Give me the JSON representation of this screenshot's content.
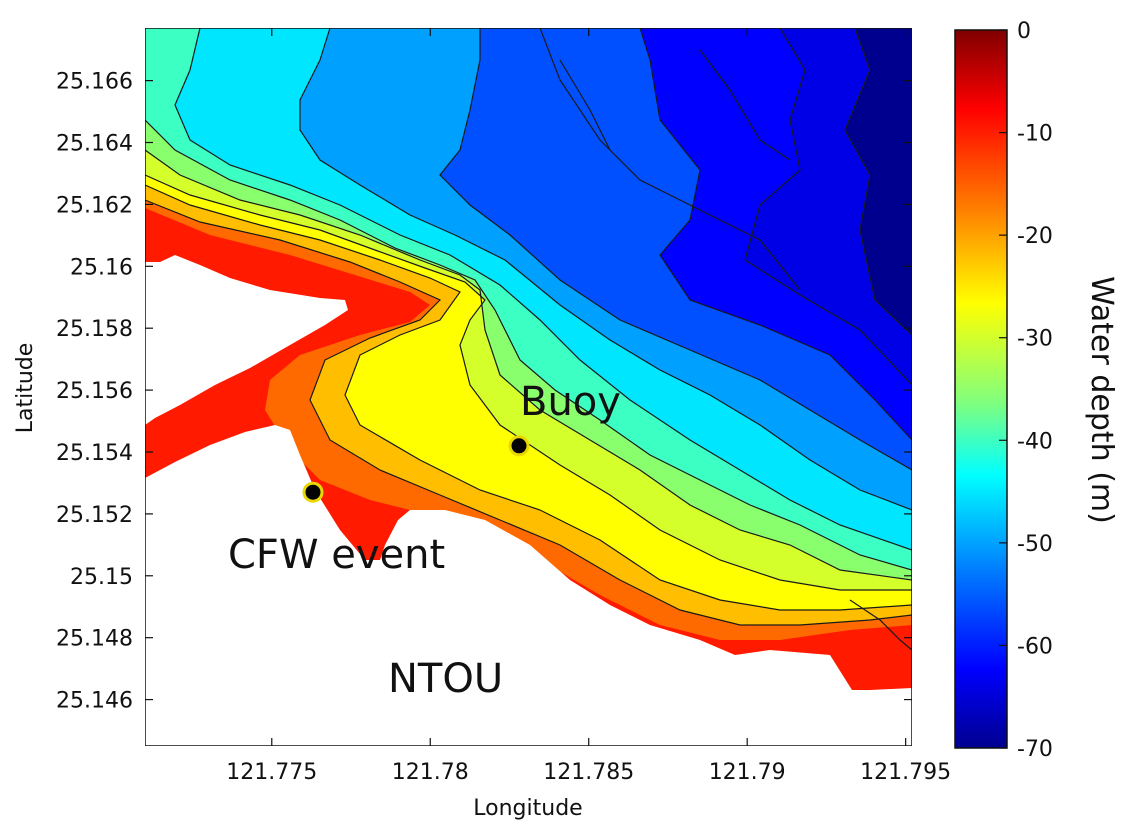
{
  "chart_data": {
    "type": "heatmap",
    "subtype": "filled-contour bathymetry map",
    "xlabel": "Longitude",
    "ylabel": "Latitude",
    "xlim": [
      121.771,
      121.7952
    ],
    "ylim": [
      25.1445,
      25.1677
    ],
    "x_ticks": [
      121.775,
      121.78,
      121.785,
      121.79,
      121.795
    ],
    "x_tick_labels": [
      "121.775",
      "121.78",
      "121.785",
      "121.79",
      "121.795"
    ],
    "y_ticks": [
      25.146,
      25.148,
      25.15,
      25.152,
      25.154,
      25.156,
      25.158,
      25.16,
      25.162,
      25.164,
      25.166
    ],
    "y_tick_labels": [
      "25.146",
      "25.148",
      "25.15",
      "25.152",
      "25.154",
      "25.156",
      "25.158",
      "25.16",
      "25.162",
      "25.164",
      "25.166"
    ],
    "colorbar": {
      "label": "Water depth (m)",
      "range": [
        -70,
        0
      ],
      "ticks": [
        0,
        -10,
        -20,
        -30,
        -40,
        -50,
        -60,
        -70
      ],
      "tick_labels": [
        "0",
        "-10",
        "-20",
        "-30",
        "-40",
        "-50",
        "-60",
        "-70"
      ],
      "colormap": "jet"
    },
    "contour_levels": [
      -5,
      -10,
      -15,
      -20,
      -25,
      -30,
      -35,
      -40,
      -45,
      -50,
      -55,
      -60,
      -65
    ],
    "points": [
      {
        "name": "Buoy",
        "lon": 121.7828,
        "lat": 25.1542,
        "marker_color": "#000000",
        "edge_color": "#e8d800"
      },
      {
        "name": "CFW event",
        "lon": 121.7763,
        "lat": 25.1527,
        "marker_color": "#000000",
        "edge_color": "#e8d800"
      }
    ],
    "annotations": [
      "Buoy",
      "CFW event",
      "NTOU"
    ]
  },
  "colors": {
    "land": "#ffffff",
    "contour_line": "#1a1a1a",
    "jet_stops": [
      "#7f0000",
      "#ff0000",
      "#ff7f00",
      "#ffff00",
      "#7fff7f",
      "#00ffff",
      "#007fff",
      "#0000ff",
      "#00008f"
    ]
  }
}
